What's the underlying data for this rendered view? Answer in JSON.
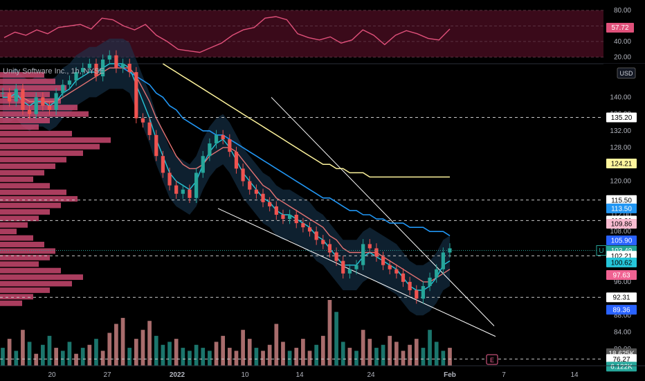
{
  "symbol_title": "Unity Software Inc., 1h, NYSE",
  "currency": "USD",
  "earnings_marker": "E",
  "colors": {
    "background": "#000000",
    "candle_up": "#26a69a",
    "candle_down": "#ef5350",
    "rsi_line": "#e0507a",
    "rsi_band": "#3a0a1a",
    "ema_cyan": "#26c6da",
    "ema_pink": "#f06292",
    "ema_blue": "#2196f3",
    "ema_red": "#e57373",
    "ma_yellow": "#fff59d",
    "volume_profile": "#c8486e",
    "keltner_fill": "#1a3a55",
    "trendline": "#ffffff"
  },
  "chart_data": [
    {
      "type": "line",
      "name_hint": "rsi-panel",
      "y_ticks": [
        "80.00",
        "60.00",
        "40.00",
        "20.00"
      ],
      "ylim": [
        15,
        88
      ],
      "current_value": "57.72",
      "x": [
        0,
        4,
        8,
        12,
        16,
        20,
        24,
        28,
        32,
        36,
        40,
        44,
        48,
        52,
        56,
        60,
        64,
        68,
        72,
        76,
        80,
        84,
        88,
        92,
        96,
        100,
        104,
        108,
        112,
        116,
        120,
        124,
        128,
        132,
        136,
        140,
        144,
        148,
        152,
        156,
        160,
        164
      ],
      "values": [
        45,
        52,
        48,
        55,
        50,
        58,
        60,
        62,
        56,
        70,
        68,
        60,
        55,
        62,
        48,
        40,
        30,
        28,
        26,
        32,
        38,
        48,
        55,
        58,
        70,
        72,
        68,
        50,
        45,
        42,
        46,
        38,
        42,
        55,
        48,
        36,
        48,
        54,
        50,
        44,
        42,
        56
      ]
    },
    {
      "type": "line",
      "name_hint": "price-panel",
      "y_ticks": [
        "140.00",
        "136.00",
        "132.00",
        "128.00",
        "124.00",
        "120.00",
        "116.00",
        "112.00",
        "108.00",
        "104.00",
        "100.00",
        "96.00",
        "92.00",
        "88.00",
        "84.00",
        "80.00"
      ],
      "ylim": [
        76,
        148
      ],
      "x_ticks": [
        "20",
        "27",
        "2022",
        "10",
        "14",
        "24",
        "Feb",
        "7",
        "14"
      ],
      "price_labels": [
        {
          "value": "135.20",
          "price": 135.2,
          "color": "#ffffff",
          "text_color": "#000000"
        },
        {
          "value": "124.21",
          "price": 124.21,
          "color": "#fff59d",
          "text_color": "#000000"
        },
        {
          "value": "115.50",
          "price": 115.5,
          "color": "#ffffff",
          "text_color": "#000000"
        },
        {
          "value": "113.50",
          "price": 113.5,
          "color": "#2196f3",
          "text_color": "#ffffff"
        },
        {
          "value": "110.61",
          "price": 110.61,
          "color": "#ffffff",
          "text_color": "#000000"
        },
        {
          "value": "109.86",
          "price": 109.86,
          "color": "#f8bbd0",
          "text_color": "#000000"
        },
        {
          "value": "105.90",
          "price": 105.9,
          "color": "#2962ff",
          "text_color": "#ffffff"
        },
        {
          "value": "103.49",
          "price": 103.49,
          "color": "#26a69a",
          "text_color": "#ffffff"
        },
        {
          "value": "102.21",
          "price": 102.21,
          "color": "#ffffff",
          "text_color": "#000000"
        },
        {
          "value": "100.62",
          "price": 100.62,
          "color": "#26c6da",
          "text_color": "#000000"
        },
        {
          "value": "97.63",
          "price": 97.63,
          "color": "#f06292",
          "text_color": "#ffffff"
        },
        {
          "value": "92.31",
          "price": 92.31,
          "color": "#ffffff",
          "text_color": "#000000"
        },
        {
          "value": "89.36",
          "price": 89.36,
          "color": "#2962ff",
          "text_color": "#ffffff"
        },
        {
          "value": "18.625K",
          "price": 79.0,
          "color": "#555555",
          "text_color": "#ffffff"
        },
        {
          "value": "76.27",
          "price": 77.6,
          "color": "#ffffff",
          "text_color": "#000000"
        },
        {
          "value": "6.122K",
          "price": 75.8,
          "color": "#26a69a",
          "text_color": "#ffffff"
        }
      ],
      "current_symbol": "U",
      "dashed_levels": [
        135.2,
        115.5,
        110.61,
        102.21,
        92.31,
        77.6
      ],
      "close": [
        141,
        139,
        142,
        137,
        136,
        140,
        138,
        137,
        141,
        143,
        144,
        146,
        147,
        148,
        145,
        149,
        150,
        147,
        148,
        146,
        135,
        134,
        131,
        126,
        122,
        119,
        117,
        118,
        116,
        122,
        126,
        129,
        131,
        130,
        127,
        123,
        120,
        118,
        117,
        115,
        114,
        112,
        111,
        112,
        110,
        109,
        108,
        106,
        105,
        103,
        101,
        98,
        99,
        100,
        105,
        104,
        102,
        100,
        99,
        98,
        96,
        94,
        92,
        95,
        97,
        99,
        103,
        104
      ],
      "ema_cyan": [
        140,
        140,
        141,
        139,
        138,
        139,
        139,
        138,
        139,
        141,
        142,
        144,
        145,
        146,
        146,
        147,
        148,
        148,
        148,
        147,
        143,
        139,
        135,
        130,
        126,
        122,
        120,
        119,
        118,
        120,
        124,
        127,
        129,
        130,
        128,
        125,
        122,
        120,
        118,
        116,
        115,
        113,
        112,
        112,
        111,
        110,
        109,
        107,
        106,
        104,
        102,
        100,
        100,
        100,
        102,
        103,
        102,
        101,
        100,
        99,
        97,
        95,
        94,
        94,
        95,
        97,
        100,
        101
      ],
      "ema_pink": [
        140,
        140,
        140,
        140,
        139,
        139,
        139,
        139,
        139,
        140,
        141,
        142,
        143,
        144,
        145,
        146,
        147,
        147,
        147,
        147,
        145,
        142,
        139,
        135,
        132,
        129,
        126,
        124,
        123,
        123,
        124,
        126,
        127,
        128,
        128,
        127,
        125,
        123,
        121,
        119,
        118,
        116,
        115,
        114,
        113,
        112,
        111,
        110,
        109,
        107,
        106,
        104,
        103,
        103,
        103,
        103,
        103,
        102,
        101,
        100,
        99,
        98,
        97,
        96,
        96,
        97,
        98,
        99
      ],
      "ema_blue": [
        null,
        null,
        null,
        null,
        null,
        null,
        null,
        null,
        null,
        null,
        null,
        null,
        null,
        null,
        null,
        null,
        null,
        148,
        147,
        146,
        145,
        144,
        143,
        141,
        140,
        138,
        137,
        135,
        134,
        133,
        132,
        132,
        131,
        131,
        130,
        129,
        128,
        127,
        126,
        125,
        124,
        123,
        122,
        121,
        120,
        119,
        118,
        117,
        116,
        116,
        115,
        114,
        113,
        113,
        112,
        112,
        111,
        111,
        110,
        110,
        110,
        109,
        109,
        109,
        108,
        108,
        108,
        107
      ],
      "ma_yellow": [
        null,
        null,
        null,
        null,
        null,
        null,
        null,
        null,
        null,
        null,
        null,
        null,
        null,
        null,
        null,
        null,
        null,
        null,
        null,
        null,
        null,
        null,
        null,
        null,
        148,
        147,
        146,
        145,
        144,
        143,
        142,
        141,
        140,
        139,
        138,
        137,
        136,
        135,
        134,
        133,
        132,
        131,
        130,
        129,
        128,
        127,
        126,
        125,
        124,
        124,
        123,
        123,
        122,
        122,
        122,
        121,
        121,
        121,
        121,
        121,
        121,
        121,
        121,
        121,
        121,
        121,
        121,
        121
      ],
      "volume": [
        6,
        9,
        5,
        12,
        8,
        4,
        7,
        10,
        6,
        5,
        8,
        4,
        6,
        7,
        9,
        5,
        11,
        14,
        16,
        6,
        9,
        12,
        15,
        10,
        7,
        8,
        9,
        6,
        5,
        7,
        6,
        5,
        8,
        10,
        6,
        5,
        12,
        9,
        6,
        5,
        7,
        14,
        8,
        5,
        6,
        9,
        5,
        7,
        10,
        22,
        18,
        8,
        6,
        5,
        12,
        9,
        6,
        7,
        10,
        8,
        5,
        7,
        9,
        6,
        12,
        8,
        5,
        6
      ],
      "volume_up": [
        true,
        false,
        true,
        false,
        true,
        false,
        true,
        true,
        false,
        true,
        true,
        false,
        true,
        false,
        true,
        false,
        false,
        false,
        false,
        true,
        false,
        false,
        false,
        true,
        true,
        true,
        false,
        true,
        true,
        true,
        true,
        true,
        false,
        false,
        false,
        false,
        false,
        false,
        true,
        false,
        false,
        false,
        false,
        true,
        false,
        false,
        false,
        true,
        false,
        false,
        true,
        true,
        false,
        true,
        false,
        false,
        true,
        true,
        false,
        false,
        false,
        false,
        false,
        true,
        true,
        true,
        true,
        false
      ],
      "volume_profile": [
        8,
        10,
        12,
        9,
        11,
        14,
        16,
        9,
        7,
        13,
        20,
        18,
        15,
        12,
        10,
        8,
        6,
        9,
        12,
        14,
        11,
        9,
        7,
        5,
        3,
        6,
        8,
        10,
        9,
        7,
        11,
        15,
        13,
        9,
        6,
        4
      ]
    }
  ]
}
